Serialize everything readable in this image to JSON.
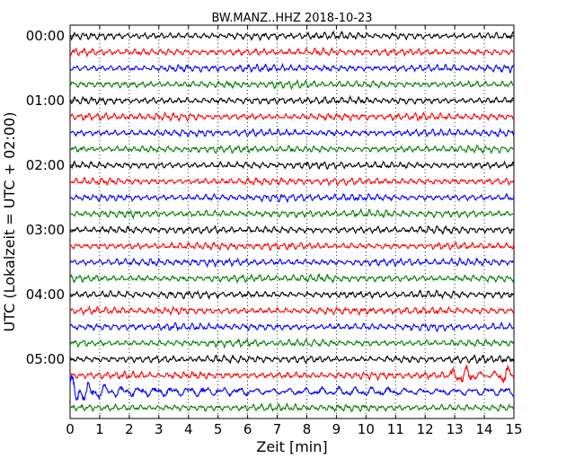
{
  "chart_data": {
    "type": "line",
    "title": "BW.MANZ..HHZ 2018-10-23",
    "xlabel": "Zeit  [min]",
    "ylabel": "UTC (Lokalzeit = UTC + 02:00)",
    "xlim": [
      0,
      15
    ],
    "x_ticks": [
      "0",
      "1",
      "2",
      "3",
      "4",
      "5",
      "6",
      "7",
      "8",
      "9",
      "10",
      "11",
      "12",
      "13",
      "14",
      "15"
    ],
    "y_ticks": [
      "00:00",
      "01:00",
      "02:00",
      "03:00",
      "04:00",
      "05:00"
    ],
    "grid": "vertical dotted at each minute",
    "trace_colors": [
      "#000000",
      "#ff0000",
      "#0000ff",
      "#007f00"
    ],
    "traces_count": 24,
    "trace_start_times": [
      "00:00",
      "00:15",
      "00:30",
      "00:45",
      "01:00",
      "01:15",
      "01:30",
      "01:45",
      "02:00",
      "02:15",
      "02:30",
      "02:45",
      "03:00",
      "03:15",
      "03:30",
      "03:45",
      "04:00",
      "04:15",
      "04:30",
      "04:45",
      "05:00",
      "05:15",
      "05:30",
      "05:45"
    ]
  }
}
